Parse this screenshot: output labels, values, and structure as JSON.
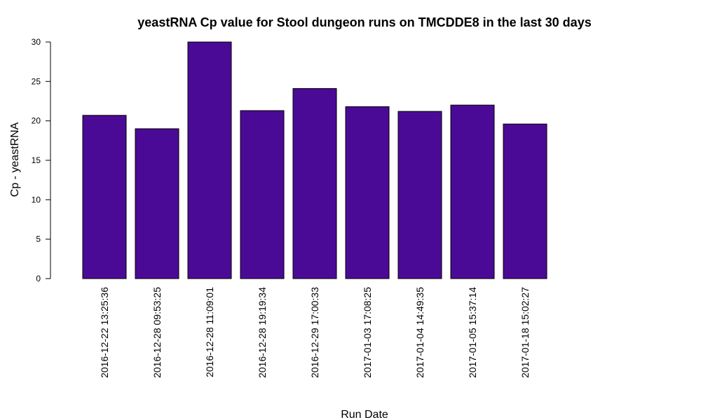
{
  "chart_data": {
    "type": "bar",
    "title": "yeastRNA Cp value for Stool dungeon runs on TMCDDE8 in the last 30 days",
    "xlabel": "Run Date",
    "ylabel": "Cp - yeastRNA",
    "ylim": [
      0,
      30
    ],
    "yticks": [
      0,
      5,
      10,
      15,
      20,
      25,
      30
    ],
    "categories": [
      "2016-12-22 13:25:36",
      "2016-12-28 09:53:25",
      "2016-12-28 11:09:01",
      "2016-12-28 19:19:34",
      "2016-12-29 17:00:33",
      "2017-01-03 17:08:25",
      "2017-01-04 14:49:35",
      "2017-01-05 15:37:14",
      "2017-01-18 15:02:27"
    ],
    "values": [
      20.7,
      19.0,
      30.0,
      21.3,
      24.1,
      21.8,
      21.2,
      22.0,
      19.6
    ],
    "bar_color": "#4B0A96",
    "grid": false,
    "legend": "none"
  }
}
